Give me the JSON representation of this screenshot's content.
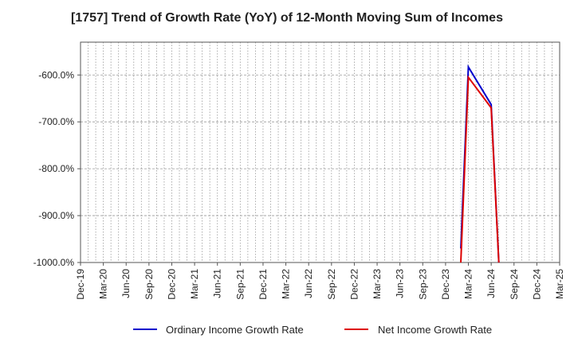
{
  "chart_data": {
    "type": "line",
    "title": "[1757]  Trend of Growth Rate (YoY) of 12-Month Moving Sum of Incomes",
    "xlabel": "",
    "ylabel": "",
    "x_tick_labels": [
      "Dec-19",
      "Mar-20",
      "Jun-20",
      "Sep-20",
      "Dec-20",
      "Mar-21",
      "Jun-21",
      "Sep-21",
      "Dec-21",
      "Mar-22",
      "Jun-22",
      "Sep-22",
      "Dec-22",
      "Mar-23",
      "Jun-23",
      "Sep-23",
      "Dec-23",
      "Mar-24",
      "Jun-24",
      "Sep-24",
      "Dec-24",
      "Mar-25"
    ],
    "y_ticks": [
      -600,
      -700,
      -800,
      -900,
      -1000
    ],
    "y_tick_labels": [
      "-600.0%",
      "-700.0%",
      "-800.0%",
      "-900.0%",
      "-1000.0%"
    ],
    "ylim": [
      -1000,
      -530
    ],
    "grid": true,
    "legend_position": "bottom",
    "series": [
      {
        "name": "Ordinary Income Growth Rate",
        "color": "#0000cc",
        "points": [
          {
            "x": "Feb-24",
            "y": -970
          },
          {
            "x": "Mar-24",
            "y": -583
          },
          {
            "x": "Jun-24",
            "y": -663
          },
          {
            "x": "Jul-24",
            "y": -1000
          }
        ]
      },
      {
        "name": "Net Income Growth Rate",
        "color": "#dd0000",
        "points": [
          {
            "x": "Feb-24",
            "y": -1000
          },
          {
            "x": "Mar-24",
            "y": -605
          },
          {
            "x": "Jun-24",
            "y": -670
          },
          {
            "x": "Jul-24",
            "y": -1000
          }
        ]
      }
    ]
  }
}
